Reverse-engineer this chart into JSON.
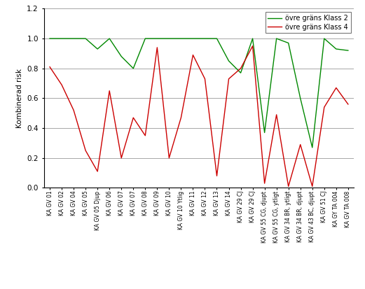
{
  "categories": [
    "KA GV 01",
    "KA GV 02",
    "KA GV 04",
    "KA GV 05",
    "KA GV 05 Djup",
    "KA GV 06",
    "KA GV 07",
    "KA GV 07",
    "KA GV 08",
    "KA GV 09",
    "KA GV 10",
    "KA GV 10 Ytlig",
    "KA GV 11",
    "KA GV 12",
    "KA GV 13",
    "KA GV 14",
    "KA GV 29 CJ",
    "KA GV 29 CJ",
    "KA GV 55 CG, djupt",
    "KA GV 55 CG, ytligt",
    "KA GV 34 BR, ytligt",
    "KA GV 34 BR, djupt",
    "KA GV 43 BC, djupt",
    "KA GV 51 CJ",
    "KA GY TA 004",
    "KA GV TA 008"
  ],
  "green_values": [
    1.0,
    1.0,
    1.0,
    1.0,
    0.93,
    1.0,
    0.88,
    0.8,
    1.0,
    1.0,
    1.0,
    1.0,
    1.0,
    1.0,
    1.0,
    0.85,
    0.77,
    1.0,
    0.37,
    1.0,
    0.97,
    0.6,
    0.27,
    1.0,
    0.93,
    0.92
  ],
  "red_values": [
    0.81,
    0.69,
    0.52,
    0.25,
    0.11,
    0.65,
    0.2,
    0.47,
    0.35,
    0.94,
    0.2,
    0.47,
    0.89,
    0.73,
    0.08,
    0.73,
    0.8,
    0.95,
    0.03,
    0.49,
    0.01,
    0.29,
    0.01,
    0.54,
    0.67,
    0.56
  ],
  "green_color": "#008800",
  "red_color": "#cc0000",
  "ylabel": "Kombinerad risk",
  "ylim": [
    0.0,
    1.2
  ],
  "yticks": [
    0.0,
    0.2,
    0.4,
    0.6,
    0.8,
    1.0,
    1.2
  ],
  "legend_labels": [
    "övre gräns Klass 2",
    "övre gräns Klass 4"
  ],
  "grid_color": "#999999",
  "background_color": "#ffffff",
  "figsize": [
    5.21,
    4.13
  ],
  "dpi": 100
}
